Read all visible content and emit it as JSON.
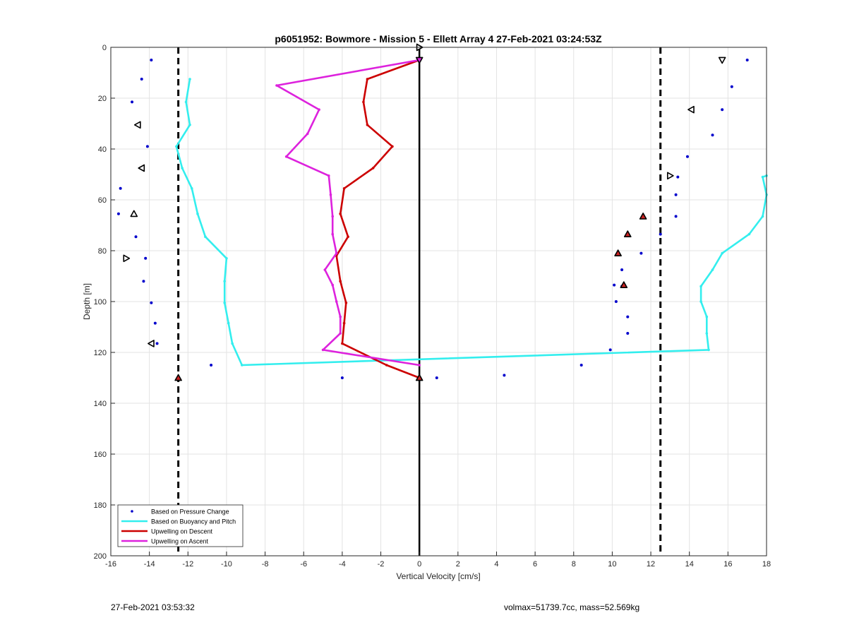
{
  "chart_data": {
    "type": "scatter",
    "title": "p6051952: Bowmore - Mission 5 - Ellett Array 4 27-Feb-2021 03:24:53Z",
    "xlabel": "Vertical Velocity [cm/s]",
    "ylabel": "Depth [m]",
    "xlim": [
      -16,
      18
    ],
    "ylim": [
      0,
      200
    ],
    "y_reversed": true,
    "grid": true,
    "legend_position": "bottom-left",
    "xticks": [
      -16,
      -14,
      -12,
      -10,
      -8,
      -6,
      -4,
      -2,
      0,
      2,
      4,
      6,
      8,
      10,
      12,
      14,
      16,
      18
    ],
    "yticks": [
      0,
      20,
      40,
      60,
      80,
      100,
      120,
      140,
      160,
      180,
      200
    ],
    "series": [
      {
        "name": "Based on Pressure Change",
        "style": "points",
        "color": "#0000cc",
        "points": [
          [
            -13.9,
            5
          ],
          [
            -14.4,
            12.5
          ],
          [
            -14.9,
            21.5
          ],
          [
            -14.6,
            30.5
          ],
          [
            -14.1,
            39
          ],
          [
            -14.4,
            47.5
          ],
          [
            -15.5,
            55.5
          ],
          [
            -15.6,
            65.5
          ],
          [
            -14.7,
            74.5
          ],
          [
            -14.2,
            83
          ],
          [
            -14.3,
            92
          ],
          [
            -13.9,
            100.5
          ],
          [
            -13.7,
            108.5
          ],
          [
            -13.6,
            116.5
          ],
          [
            -10.8,
            125
          ],
          [
            -12.5,
            130
          ],
          [
            -4,
            130
          ],
          [
            0,
            130
          ],
          [
            0.9,
            130
          ],
          [
            4.4,
            129
          ],
          [
            8.4,
            125
          ],
          [
            9.9,
            119
          ],
          [
            10.8,
            112.5
          ],
          [
            10.8,
            106
          ],
          [
            10.2,
            100
          ],
          [
            10.5,
            94
          ],
          [
            10.1,
            93.5
          ],
          [
            10.5,
            87.5
          ],
          [
            11.5,
            81
          ],
          [
            12.5,
            73.5
          ],
          [
            13.3,
            66.5
          ],
          [
            13.3,
            58
          ],
          [
            13.4,
            51
          ],
          [
            13.9,
            43
          ],
          [
            15.2,
            34.5
          ],
          [
            15.7,
            24.5
          ],
          [
            16.2,
            15.5
          ],
          [
            17,
            5
          ]
        ]
      },
      {
        "name": "Based on Buoyancy and Pitch",
        "style": "line",
        "color": "#33eeee",
        "points": [
          [
            -11.9,
            12.5
          ],
          [
            -12.1,
            21.5
          ],
          [
            -11.9,
            30.5
          ],
          [
            -12.6,
            39
          ],
          [
            -12.3,
            47.5
          ],
          [
            -11.8,
            55.5
          ],
          [
            -11.5,
            65.5
          ],
          [
            -11.1,
            74.5
          ],
          [
            -10,
            83
          ],
          [
            -10.1,
            92
          ],
          [
            -10.1,
            100.5
          ],
          [
            -9.9,
            108.5
          ],
          [
            -9.7,
            116.5
          ],
          [
            -9.2,
            125
          ],
          [
            15,
            119
          ],
          [
            14.9,
            112.5
          ],
          [
            14.9,
            106
          ],
          [
            14.6,
            100
          ],
          [
            14.6,
            94
          ],
          [
            15.2,
            87.5
          ],
          [
            15.7,
            81
          ],
          [
            17.1,
            73.5
          ],
          [
            17.8,
            66.5
          ],
          [
            18,
            58
          ],
          [
            17.8,
            51
          ],
          [
            18,
            50.5
          ]
        ]
      },
      {
        "name": "Upwelling on Descent",
        "style": "line",
        "color": "#cc0000",
        "points": [
          [
            0,
            5
          ],
          [
            -2.7,
            12.5
          ],
          [
            -2.9,
            21.5
          ],
          [
            -2.7,
            30.5
          ],
          [
            -1.4,
            39
          ],
          [
            -2.4,
            47.5
          ],
          [
            -3.9,
            55.5
          ],
          [
            -4.1,
            65.5
          ],
          [
            -3.7,
            74.5
          ],
          [
            -4.3,
            82
          ],
          [
            -4.1,
            92
          ],
          [
            -3.8,
            100.5
          ],
          [
            -3.9,
            108.5
          ],
          [
            -4,
            116.5
          ],
          [
            -1.7,
            125
          ],
          [
            0,
            130
          ]
        ]
      },
      {
        "name": "Upwelling on Ascent",
        "style": "line",
        "color": "#dd22dd",
        "points": [
          [
            0,
            5
          ],
          [
            -7.4,
            15
          ],
          [
            -5.2,
            24.5
          ],
          [
            -5.8,
            34
          ],
          [
            -6.9,
            43
          ],
          [
            -4.7,
            50.5
          ],
          [
            -4.6,
            58
          ],
          [
            -4.5,
            66.5
          ],
          [
            -4.5,
            73.5
          ],
          [
            -4.3,
            81
          ],
          [
            -4.9,
            87.5
          ],
          [
            -4.5,
            93.5
          ],
          [
            -4.3,
            100
          ],
          [
            -4.1,
            106
          ],
          [
            -4.1,
            112.5
          ],
          [
            -5,
            119
          ],
          [
            0,
            125
          ]
        ]
      }
    ],
    "reference_lines": [
      {
        "axis": "x",
        "value": -12.5,
        "style": "dashed",
        "color": "#000000"
      },
      {
        "axis": "x",
        "value": 12.5,
        "style": "dashed",
        "color": "#000000"
      },
      {
        "axis": "x",
        "value": 0,
        "style": "solid",
        "color": "#000000"
      }
    ],
    "markers": [
      {
        "shape": "tri-right",
        "x": 0,
        "y": 0,
        "fill": "#ffffff"
      },
      {
        "shape": "tri-down",
        "x": 15.7,
        "y": 5,
        "fill": "#ffffff"
      },
      {
        "shape": "tri-left",
        "x": 14.1,
        "y": 24.5,
        "fill": "#ffffff"
      },
      {
        "shape": "tri-left",
        "x": -14.6,
        "y": 30.5,
        "fill": "#ffffff"
      },
      {
        "shape": "tri-left",
        "x": -14.4,
        "y": 47.5,
        "fill": "#ffffff"
      },
      {
        "shape": "tri-right",
        "x": 13,
        "y": 50.5,
        "fill": "#ffffff"
      },
      {
        "shape": "tri-up",
        "x": -14.8,
        "y": 65.5,
        "fill": "#ffffff"
      },
      {
        "shape": "tri-right",
        "x": -15.2,
        "y": 83,
        "fill": "#ffffff"
      },
      {
        "shape": "tri-left",
        "x": -13.9,
        "y": 116.5,
        "fill": "#ffffff"
      },
      {
        "shape": "tri-up",
        "x": 11.6,
        "y": 66.5,
        "fill": "#cc2222"
      },
      {
        "shape": "tri-up",
        "x": 10.8,
        "y": 73.5,
        "fill": "#cc2222"
      },
      {
        "shape": "tri-up",
        "x": 10.3,
        "y": 81,
        "fill": "#cc2222"
      },
      {
        "shape": "tri-up",
        "x": 10.6,
        "y": 93.5,
        "fill": "#cc2222"
      },
      {
        "shape": "tri-up",
        "x": -12.5,
        "y": 130,
        "fill": "#cc2222"
      },
      {
        "shape": "tri-up",
        "x": 0,
        "y": 130,
        "fill": "#cc2222"
      },
      {
        "shape": "tri-down",
        "x": 0,
        "y": 5,
        "fill": "#dd22dd"
      }
    ]
  },
  "footer": {
    "timestamp": "27-Feb-2021 03:53:32",
    "info": "volmax=51739.7cc, mass=52.569kg"
  }
}
